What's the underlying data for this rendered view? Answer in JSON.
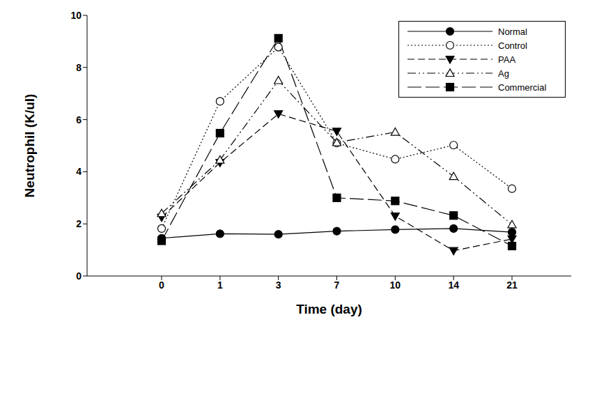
{
  "chart_data": {
    "type": "line",
    "x_label": "Time (day)",
    "y_label": "Neutrophil (K/ul)",
    "categories": [
      "0",
      "1",
      "3",
      "7",
      "10",
      "14",
      "21"
    ],
    "ylim": [
      0,
      10
    ],
    "yticks": [
      0,
      2,
      4,
      6,
      8,
      10
    ],
    "legend": "upper right",
    "series": [
      {
        "name": "Normal",
        "color": "#000000",
        "marker": "filled-circle",
        "line_style": "solid",
        "values": [
          1.45,
          1.62,
          1.6,
          1.72,
          1.78,
          1.82,
          1.68
        ]
      },
      {
        "name": "Control",
        "color": "#000000",
        "marker": "open-circle",
        "line_style": "dotted",
        "values": [
          1.82,
          6.7,
          8.78,
          5.1,
          4.48,
          5.02,
          3.35
        ]
      },
      {
        "name": "PAA",
        "color": "#000000",
        "marker": "filled-triangle-down",
        "line_style": "dashed",
        "values": [
          2.25,
          4.35,
          6.22,
          5.55,
          2.3,
          0.97,
          1.42
        ]
      },
      {
        "name": "Ag",
        "color": "#000000",
        "marker": "open-triangle-up",
        "line_style": "dash-dot-dot",
        "values": [
          2.4,
          4.45,
          7.5,
          5.12,
          5.52,
          3.82,
          1.97
        ]
      },
      {
        "name": "Commercial",
        "color": "#000000",
        "marker": "filled-square",
        "line_style": "long-dash",
        "values": [
          1.35,
          5.48,
          9.12,
          3.0,
          2.88,
          2.32,
          1.15
        ]
      }
    ]
  }
}
